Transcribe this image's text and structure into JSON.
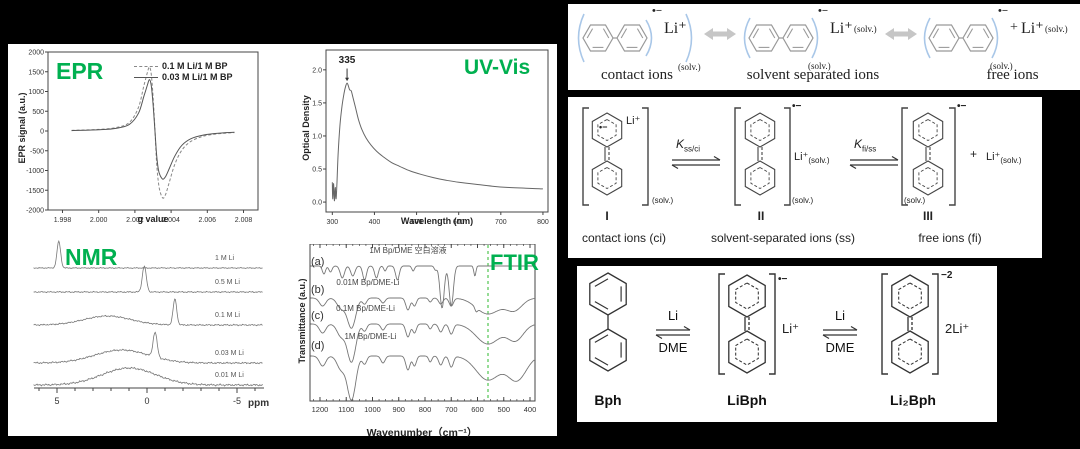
{
  "colors": {
    "accent_green": "#00b050",
    "bracket_blue": "#a9c7e8",
    "arrow_gray": "#c6c6c6",
    "line_gray": "#666666",
    "marker_green": "#2eb82e"
  },
  "chart_data": [
    {
      "id": "epr",
      "type": "line",
      "title": "EPR",
      "xlabel": "g value",
      "ylabel": "EPR signal (a.u.)",
      "xlim": [
        1.9972,
        2.0088
      ],
      "ylim": [
        -2000,
        2000
      ],
      "xtick_vals": [
        1.998,
        2.0,
        2.002,
        2.004,
        2.006,
        2.008
      ],
      "xtick_labels": [
        "1.998",
        "2.000",
        "2.002",
        "2.004",
        "2.006",
        "2.008"
      ],
      "ytick_vals": [
        2000,
        1500,
        1000,
        500,
        0,
        -500,
        -1000,
        -1500,
        -2000
      ],
      "ytick_labels": [
        "2000",
        "1500",
        "1000",
        "500",
        "0",
        "-500",
        "-1000",
        "-1500",
        "-2000"
      ],
      "series": [
        {
          "name": "0.1 M Li/1 M BP",
          "style": "dashed",
          "color": "#888888",
          "x": [
            1.9985,
            2.0,
            2.001,
            2.0017,
            2.0022,
            2.0025,
            2.0027,
            2.0028,
            2.0029,
            2.003,
            2.0031,
            2.0032,
            2.0033,
            2.0034,
            2.00355,
            2.0037,
            2.0039,
            2.0042,
            2.0046,
            2.0051,
            2.0058,
            2.0066,
            2.0075
          ],
          "y": [
            15,
            40,
            90,
            220,
            600,
            1150,
            1500,
            1620,
            1450,
            900,
            100,
            -800,
            -1300,
            -1550,
            -1700,
            -1600,
            -1300,
            -850,
            -480,
            -260,
            -130,
            -70,
            -40
          ]
        },
        {
          "name": "0.03 M Li/1 M BP",
          "style": "solid",
          "color": "#555555",
          "x": [
            1.9985,
            2.0,
            2.001,
            2.0017,
            2.0022,
            2.0025,
            2.0027,
            2.0028,
            2.0029,
            2.003,
            2.0031,
            2.0032,
            2.0033,
            2.0034,
            2.00355,
            2.0037,
            2.0039,
            2.0042,
            2.0046,
            2.0051,
            2.0058,
            2.0066,
            2.0075
          ],
          "y": [
            10,
            30,
            70,
            170,
            450,
            880,
            1180,
            1300,
            1160,
            700,
            60,
            -600,
            -980,
            -1130,
            -1220,
            -1150,
            -950,
            -640,
            -360,
            -195,
            -100,
            -55,
            -30
          ]
        }
      ]
    },
    {
      "id": "uvvis",
      "type": "line",
      "title": "UV-Vis",
      "xlabel": "Wavelength (nm)",
      "ylabel": "Optical Density",
      "xlim": [
        285,
        812
      ],
      "ylim": [
        -0.15,
        2.3
      ],
      "xtick_vals": [
        300,
        400,
        500,
        600,
        700,
        800
      ],
      "xtick_labels": [
        "300",
        "400",
        "500",
        "600",
        "700",
        "800"
      ],
      "ytick_vals": [
        0.0,
        0.5,
        1.0,
        1.5,
        2.0
      ],
      "ytick_labels": [
        "0.0",
        "0.5",
        "1.0",
        "1.5",
        "2.0"
      ],
      "annotation": {
        "x": 335,
        "y": 1.8,
        "label": "335"
      },
      "series": [
        {
          "name": "spectrum",
          "style": "solid",
          "color": "#666666",
          "x": [
            300,
            301,
            303,
            305,
            307,
            309,
            311,
            314,
            318,
            323,
            328,
            332,
            335,
            338,
            341,
            345,
            349,
            355,
            362,
            370,
            380,
            392,
            405,
            420,
            440,
            460,
            485,
            510,
            540,
            570,
            600,
            640,
            680,
            720,
            760,
            800
          ],
          "y": [
            0.3,
            0.05,
            0.28,
            0.02,
            0.22,
            0.05,
            0.3,
            0.75,
            1.15,
            1.45,
            1.65,
            1.76,
            1.8,
            1.76,
            1.7,
            1.68,
            1.58,
            1.43,
            1.25,
            1.1,
            0.97,
            0.86,
            0.77,
            0.69,
            0.6,
            0.54,
            0.47,
            0.42,
            0.37,
            0.33,
            0.3,
            0.27,
            0.24,
            0.22,
            0.21,
            0.2
          ]
        }
      ]
    },
    {
      "id": "nmr",
      "type": "stacked-line",
      "title": "NMR",
      "xlabel": "ppm",
      "xlim": [
        6.3,
        -6.45
      ],
      "xtick_vals": [
        5,
        0,
        -5
      ],
      "xtick_labels": [
        "5",
        "0",
        "-5"
      ],
      "traces": [
        {
          "label": "1 M Li",
          "base": 28,
          "peaks": [
            {
              "c": 4.9,
              "h": 27,
              "w": 0.1
            }
          ]
        },
        {
          "label": "0.5 M Li",
          "base": 52,
          "peaks": [
            {
              "c": 0.15,
              "h": 26,
              "w": 0.11
            }
          ]
        },
        {
          "label": "0.1 M Li",
          "base": 85,
          "peaks": [
            {
              "c": 2.2,
              "h": 9,
              "w": 1.3
            },
            {
              "c": -1.55,
              "h": 26,
              "w": 0.1
            }
          ]
        },
        {
          "label": "0.03 M Li",
          "base": 123,
          "peaks": [
            {
              "c": 1.4,
              "h": 13,
              "w": 1.5
            },
            {
              "c": -0.45,
              "h": 25,
              "w": 0.11
            }
          ]
        },
        {
          "label": "0.01 M Li",
          "base": 145,
          "peaks": [
            {
              "c": 1.0,
              "h": 17,
              "w": 1.5
            }
          ]
        }
      ]
    },
    {
      "id": "ftir",
      "type": "stacked-line",
      "title": "FTIR",
      "xlabel": "Wavenumber（cm⁻¹）",
      "ylabel": "Transmittance (a.u.)",
      "xlim": [
        1238,
        381
      ],
      "xtick_vals": [
        1200,
        1100,
        1000,
        900,
        800,
        700,
        600,
        500,
        400
      ],
      "xtick_labels": [
        "1200",
        "1100",
        "1000",
        "900",
        "800",
        "700",
        "600",
        "500",
        "400"
      ],
      "marker": {
        "wavenumber": 560,
        "color": "#2eb82e"
      },
      "traces": [
        {
          "key": "(a)",
          "label": "1M Bp/DME 空白溶液",
          "base": 22,
          "dips": [
            [
              1185,
              8,
              6
            ],
            [
              1160,
              6,
              6
            ],
            [
              1115,
              12,
              8
            ],
            [
              1075,
              10,
              8
            ],
            [
              1030,
              14,
              7
            ],
            [
              985,
              12,
              7
            ],
            [
              952,
              5,
              5
            ],
            [
              905,
              14,
              7
            ],
            [
              845,
              5,
              5
            ],
            [
              760,
              4,
              5
            ],
            [
              735,
              42,
              8
            ],
            [
              700,
              40,
              8
            ],
            [
              610,
              10,
              4
            ]
          ]
        },
        {
          "key": "(b)",
          "label": "0.01M Bp/DME-Li",
          "base": 54,
          "dips": [
            [
              1190,
              8,
              12
            ],
            [
              1120,
              10,
              15
            ],
            [
              1080,
              30,
              16
            ],
            [
              1030,
              6,
              8
            ],
            [
              960,
              5,
              8
            ],
            [
              865,
              12,
              8
            ],
            [
              840,
              8,
              7
            ],
            [
              780,
              4,
              6
            ],
            [
              740,
              6,
              8
            ],
            [
              700,
              8,
              8
            ],
            [
              605,
              4,
              5
            ],
            [
              560,
              16,
              45
            ],
            [
              460,
              12,
              30
            ]
          ]
        },
        {
          "key": "(c)",
          "label": "0.1M Bp/DME-Li",
          "base": 80,
          "dips": [
            [
              1190,
              9,
              12
            ],
            [
              1120,
              12,
              15
            ],
            [
              1080,
              38,
              16
            ],
            [
              1030,
              7,
              8
            ],
            [
              960,
              6,
              8
            ],
            [
              865,
              13,
              8
            ],
            [
              840,
              9,
              7
            ],
            [
              780,
              5,
              6
            ],
            [
              740,
              8,
              8
            ],
            [
              700,
              10,
              8
            ],
            [
              560,
              20,
              45
            ],
            [
              455,
              16,
              30
            ]
          ]
        },
        {
          "key": "(d)",
          "label": "1M Bp/DME-Li",
          "base": 112,
          "dips": [
            [
              1190,
              10,
              12
            ],
            [
              1120,
              13,
              15
            ],
            [
              1080,
              44,
              16
            ],
            [
              1030,
              8,
              8
            ],
            [
              960,
              7,
              8
            ],
            [
              865,
              14,
              8
            ],
            [
              840,
              10,
              7
            ],
            [
              780,
              6,
              6
            ],
            [
              740,
              9,
              8
            ],
            [
              700,
              11,
              8
            ],
            [
              560,
              24,
              45
            ],
            [
              450,
              24,
              35
            ]
          ]
        }
      ]
    }
  ],
  "scheme_top": {
    "items": [
      {
        "radical": "•−",
        "cation": "Li⁺",
        "solv": "(solv.)",
        "caption": "contact ions"
      },
      {
        "radical": "•−",
        "cation": "Li⁺",
        "cation_solv": "(solv.)",
        "solv": "(solv.)",
        "caption": "solvent separated ions"
      },
      {
        "radical": "•−",
        "plus": "+",
        "cation": "Li⁺",
        "cation_solv": "(solv.)",
        "solv": "(solv.)",
        "caption": "free ions"
      }
    ]
  },
  "scheme_mid": {
    "eq1": {
      "K": "K",
      "sub": "ss/ci"
    },
    "eq2": {
      "K": "K",
      "sub": "fi/ss"
    },
    "items": [
      {
        "radical": "•−",
        "cation": "Li⁺",
        "solv": "(solv.)",
        "num": "I",
        "caption": "contact ions (ci)"
      },
      {
        "radical": "•−",
        "cation": "Li⁺",
        "cation_solv": "(solv.)",
        "solv": "(solv.)",
        "num": "II",
        "caption": "solvent-separated ions (ss)"
      },
      {
        "radical": "•−",
        "plus": "+",
        "cation": "Li⁺",
        "cation_solv": "(solv.)",
        "solv": "(solv.)",
        "num": "III",
        "caption": "free ions (fi)"
      }
    ]
  },
  "scheme_bottom": {
    "eq": {
      "top": "Li",
      "bottom": "DME"
    },
    "items": [
      {
        "caption": "Bph"
      },
      {
        "charge": "•−",
        "cation": "Li⁺",
        "caption": "LiBph"
      },
      {
        "charge": "−2",
        "cation": "2Li⁺",
        "caption": "Li₂Bph"
      }
    ]
  }
}
